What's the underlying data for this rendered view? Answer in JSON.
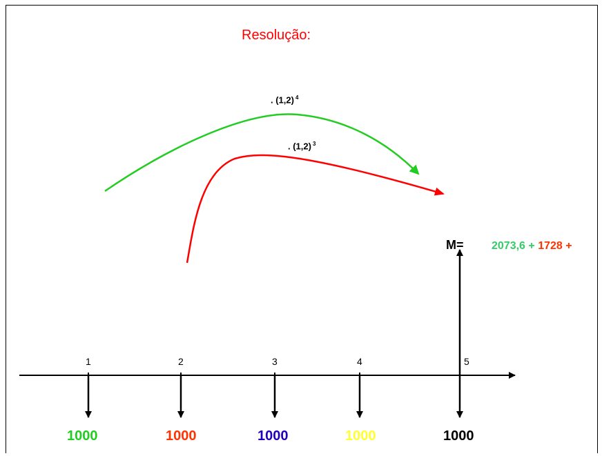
{
  "title": "Resolução:",
  "timeline": {
    "ticks": [
      "1",
      "2",
      "3",
      "4",
      "5"
    ],
    "payments": [
      {
        "label": "1000",
        "color": "#22cc22"
      },
      {
        "label": "1000",
        "color": "#ff3300"
      },
      {
        "label": "1000",
        "color": "#2200bb"
      },
      {
        "label": "1000",
        "color": "#ffff33"
      },
      {
        "label": "1000",
        "color": "#000000"
      }
    ]
  },
  "arcs": {
    "green": {
      "factor": ". (1,2)",
      "exponent": "4",
      "color": "#22cc22"
    },
    "red": {
      "factor": ". (1,2)",
      "exponent": "3",
      "color": "#ff0000"
    }
  },
  "result": {
    "label": "M=",
    "term1": "2073,6 +",
    "term1_color": "#33cc66",
    "term2": "1728 +",
    "term2_color": "#ff3300"
  }
}
